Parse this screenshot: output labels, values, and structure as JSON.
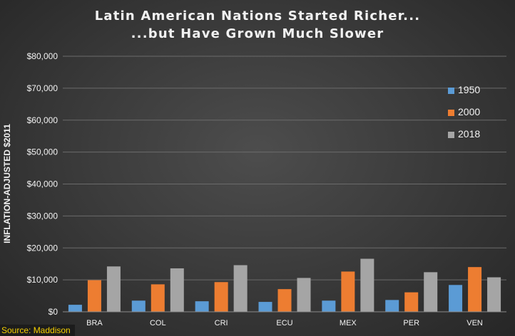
{
  "chart_data": {
    "type": "bar",
    "title": [
      "Latin American Nations Started Richer...",
      "...but Have Grown Much Slower"
    ],
    "ylabel": "INFLATION-ADJUSTED $2011",
    "source": "Source: Maddison",
    "categories": [
      "BRA",
      "COL",
      "CRI",
      "ECU",
      "MEX",
      "PER",
      "VEN"
    ],
    "ylim": [
      0,
      80000
    ],
    "y_ticks": [
      0,
      10000,
      20000,
      30000,
      40000,
      50000,
      60000,
      70000,
      80000
    ],
    "y_tick_labels": [
      "$0",
      "$10,000",
      "$20,000",
      "$30,000",
      "$40,000",
      "$50,000",
      "$60,000",
      "$70,000",
      "$80,000"
    ],
    "grid": true,
    "legend_position": "right",
    "series": [
      {
        "name": "1950",
        "color": "#5b9bd5",
        "values": [
          2200,
          3500,
          3300,
          3100,
          3500,
          3700,
          8400
        ]
      },
      {
        "name": "2000",
        "color": "#ed7d31",
        "values": [
          9900,
          8600,
          9300,
          7100,
          12600,
          6100,
          14000
        ]
      },
      {
        "name": "2018",
        "color": "#a5a5a5",
        "values": [
          14200,
          13600,
          14600,
          10600,
          16600,
          12400,
          10800
        ]
      }
    ]
  }
}
